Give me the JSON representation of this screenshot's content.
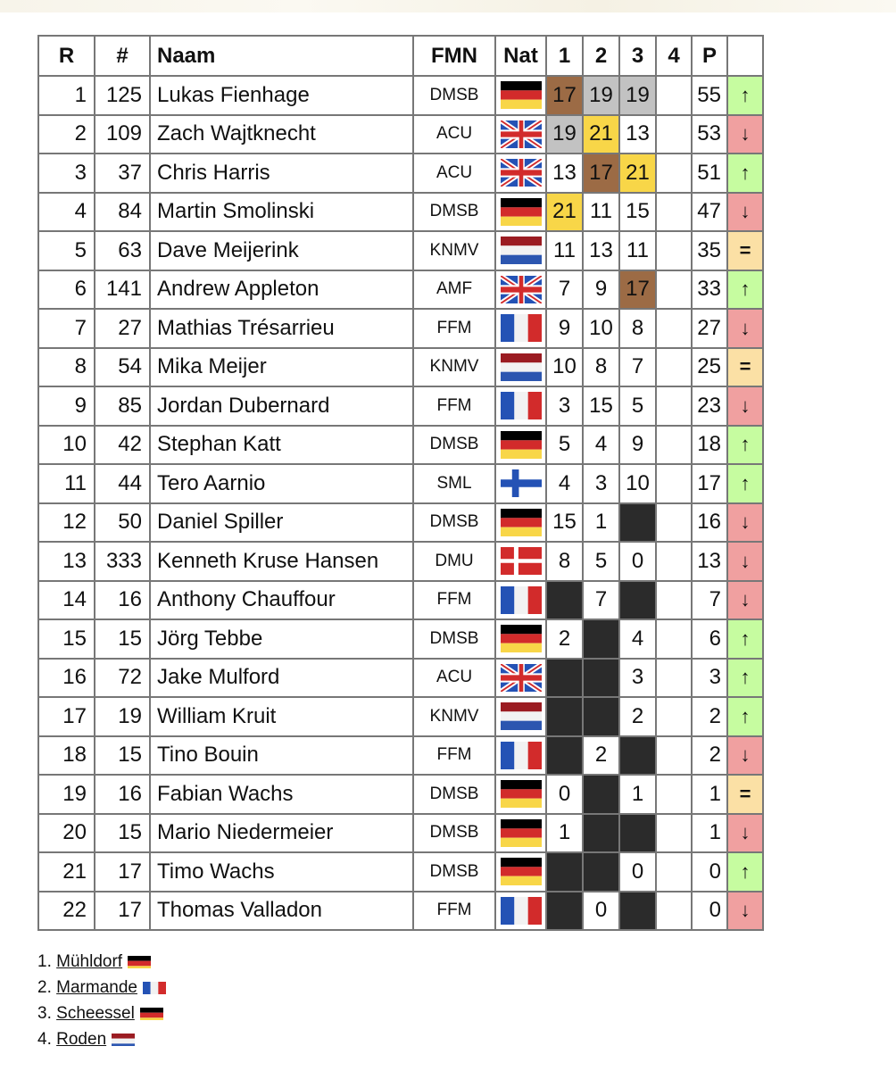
{
  "headers": {
    "rank": "R",
    "number": "#",
    "name": "Naam",
    "fmn": "FMN",
    "nat": "Nat",
    "r1": "1",
    "r2": "2",
    "r3": "3",
    "r4": "4",
    "points": "P"
  },
  "colors": {
    "gold": "#f8d648",
    "silver": "#c2c2c2",
    "bronze": "#9c6b45",
    "dnf": "#2b2b2b",
    "up": "#c6fca0",
    "down": "#f0a0a0",
    "same": "#fbe0a5"
  },
  "trend_symbols": {
    "up": "↑",
    "down": "↓",
    "same": "="
  },
  "rows": [
    {
      "rank": "1",
      "number": "125",
      "name": "Lukas Fienhage",
      "fmn": "DMSB",
      "nat": "de",
      "races": [
        "17",
        "19",
        "19",
        ""
      ],
      "points": "55",
      "trend": "up"
    },
    {
      "rank": "2",
      "number": "109",
      "name": "Zach Wajtknecht",
      "fmn": "ACU",
      "nat": "gb",
      "races": [
        "19",
        "21",
        "13",
        ""
      ],
      "points": "53",
      "trend": "down"
    },
    {
      "rank": "3",
      "number": "37",
      "name": "Chris Harris",
      "fmn": "ACU",
      "nat": "gb",
      "races": [
        "13",
        "17",
        "21",
        ""
      ],
      "points": "51",
      "trend": "up"
    },
    {
      "rank": "4",
      "number": "84",
      "name": "Martin Smolinski",
      "fmn": "DMSB",
      "nat": "de",
      "races": [
        "21",
        "11",
        "15",
        ""
      ],
      "points": "47",
      "trend": "down"
    },
    {
      "rank": "5",
      "number": "63",
      "name": "Dave Meijerink",
      "fmn": "KNMV",
      "nat": "nl",
      "races": [
        "11",
        "13",
        "11",
        ""
      ],
      "points": "35",
      "trend": "same"
    },
    {
      "rank": "6",
      "number": "141",
      "name": "Andrew Appleton",
      "fmn": "AMF",
      "nat": "gb",
      "races": [
        "7",
        "9",
        "17",
        ""
      ],
      "points": "33",
      "trend": "up"
    },
    {
      "rank": "7",
      "number": "27",
      "name": "Mathias Trésarrieu",
      "fmn": "FFM",
      "nat": "fr",
      "races": [
        "9",
        "10",
        "8",
        ""
      ],
      "points": "27",
      "trend": "down"
    },
    {
      "rank": "8",
      "number": "54",
      "name": "Mika Meijer",
      "fmn": "KNMV",
      "nat": "nl",
      "races": [
        "10",
        "8",
        "7",
        ""
      ],
      "points": "25",
      "trend": "same"
    },
    {
      "rank": "9",
      "number": "85",
      "name": "Jordan Dubernard",
      "fmn": "FFM",
      "nat": "fr",
      "races": [
        "3",
        "15",
        "5",
        ""
      ],
      "points": "23",
      "trend": "down"
    },
    {
      "rank": "10",
      "number": "42",
      "name": "Stephan Katt",
      "fmn": "DMSB",
      "nat": "de",
      "races": [
        "5",
        "4",
        "9",
        ""
      ],
      "points": "18",
      "trend": "up"
    },
    {
      "rank": "11",
      "number": "44",
      "name": "Tero Aarnio",
      "fmn": "SML",
      "nat": "fi",
      "races": [
        "4",
        "3",
        "10",
        ""
      ],
      "points": "17",
      "trend": "up"
    },
    {
      "rank": "12",
      "number": "50",
      "name": "Daniel Spiller",
      "fmn": "DMSB",
      "nat": "de",
      "races": [
        "15",
        "1",
        "X",
        ""
      ],
      "points": "16",
      "trend": "down"
    },
    {
      "rank": "13",
      "number": "333",
      "name": "Kenneth Kruse Hansen",
      "fmn": "DMU",
      "nat": "dk",
      "races": [
        "8",
        "5",
        "0",
        ""
      ],
      "points": "13",
      "trend": "down"
    },
    {
      "rank": "14",
      "number": "16",
      "name": "Anthony Chauffour",
      "fmn": "FFM",
      "nat": "fr",
      "races": [
        "X",
        "7",
        "X",
        ""
      ],
      "points": "7",
      "trend": "down"
    },
    {
      "rank": "15",
      "number": "15",
      "name": "Jörg Tebbe",
      "fmn": "DMSB",
      "nat": "de",
      "races": [
        "2",
        "X",
        "4",
        ""
      ],
      "points": "6",
      "trend": "up"
    },
    {
      "rank": "16",
      "number": "72",
      "name": "Jake Mulford",
      "fmn": "ACU",
      "nat": "gb",
      "races": [
        "X",
        "X",
        "3",
        ""
      ],
      "points": "3",
      "trend": "up"
    },
    {
      "rank": "17",
      "number": "19",
      "name": "William Kruit",
      "fmn": "KNMV",
      "nat": "nl",
      "races": [
        "X",
        "X",
        "2",
        ""
      ],
      "points": "2",
      "trend": "up"
    },
    {
      "rank": "18",
      "number": "15",
      "name": "Tino Bouin",
      "fmn": "FFM",
      "nat": "fr",
      "races": [
        "X",
        "2",
        "X",
        ""
      ],
      "points": "2",
      "trend": "down"
    },
    {
      "rank": "19",
      "number": "16",
      "name": "Fabian Wachs",
      "fmn": "DMSB",
      "nat": "de",
      "races": [
        "0",
        "X",
        "1",
        ""
      ],
      "points": "1",
      "trend": "same"
    },
    {
      "rank": "20",
      "number": "15",
      "name": "Mario Niedermeier",
      "fmn": "DMSB",
      "nat": "de",
      "races": [
        "1",
        "X",
        "X",
        ""
      ],
      "points": "1",
      "trend": "down"
    },
    {
      "rank": "21",
      "number": "17",
      "name": "Timo Wachs",
      "fmn": "DMSB",
      "nat": "de",
      "races": [
        "X",
        "X",
        "0",
        ""
      ],
      "points": "0",
      "trend": "up"
    },
    {
      "rank": "22",
      "number": "17",
      "name": "Thomas Valladon",
      "fmn": "FFM",
      "nat": "fr",
      "races": [
        "X",
        "0",
        "X",
        ""
      ],
      "points": "0",
      "trend": "down"
    }
  ],
  "legend": [
    {
      "num": "1.",
      "venue": "Mühldorf",
      "nat": "de"
    },
    {
      "num": "2.",
      "venue": "Marmande",
      "nat": "fr"
    },
    {
      "num": "3.",
      "venue": "Scheessel",
      "nat": "de"
    },
    {
      "num": "4.",
      "venue": "Roden",
      "nat": "nl"
    }
  ]
}
